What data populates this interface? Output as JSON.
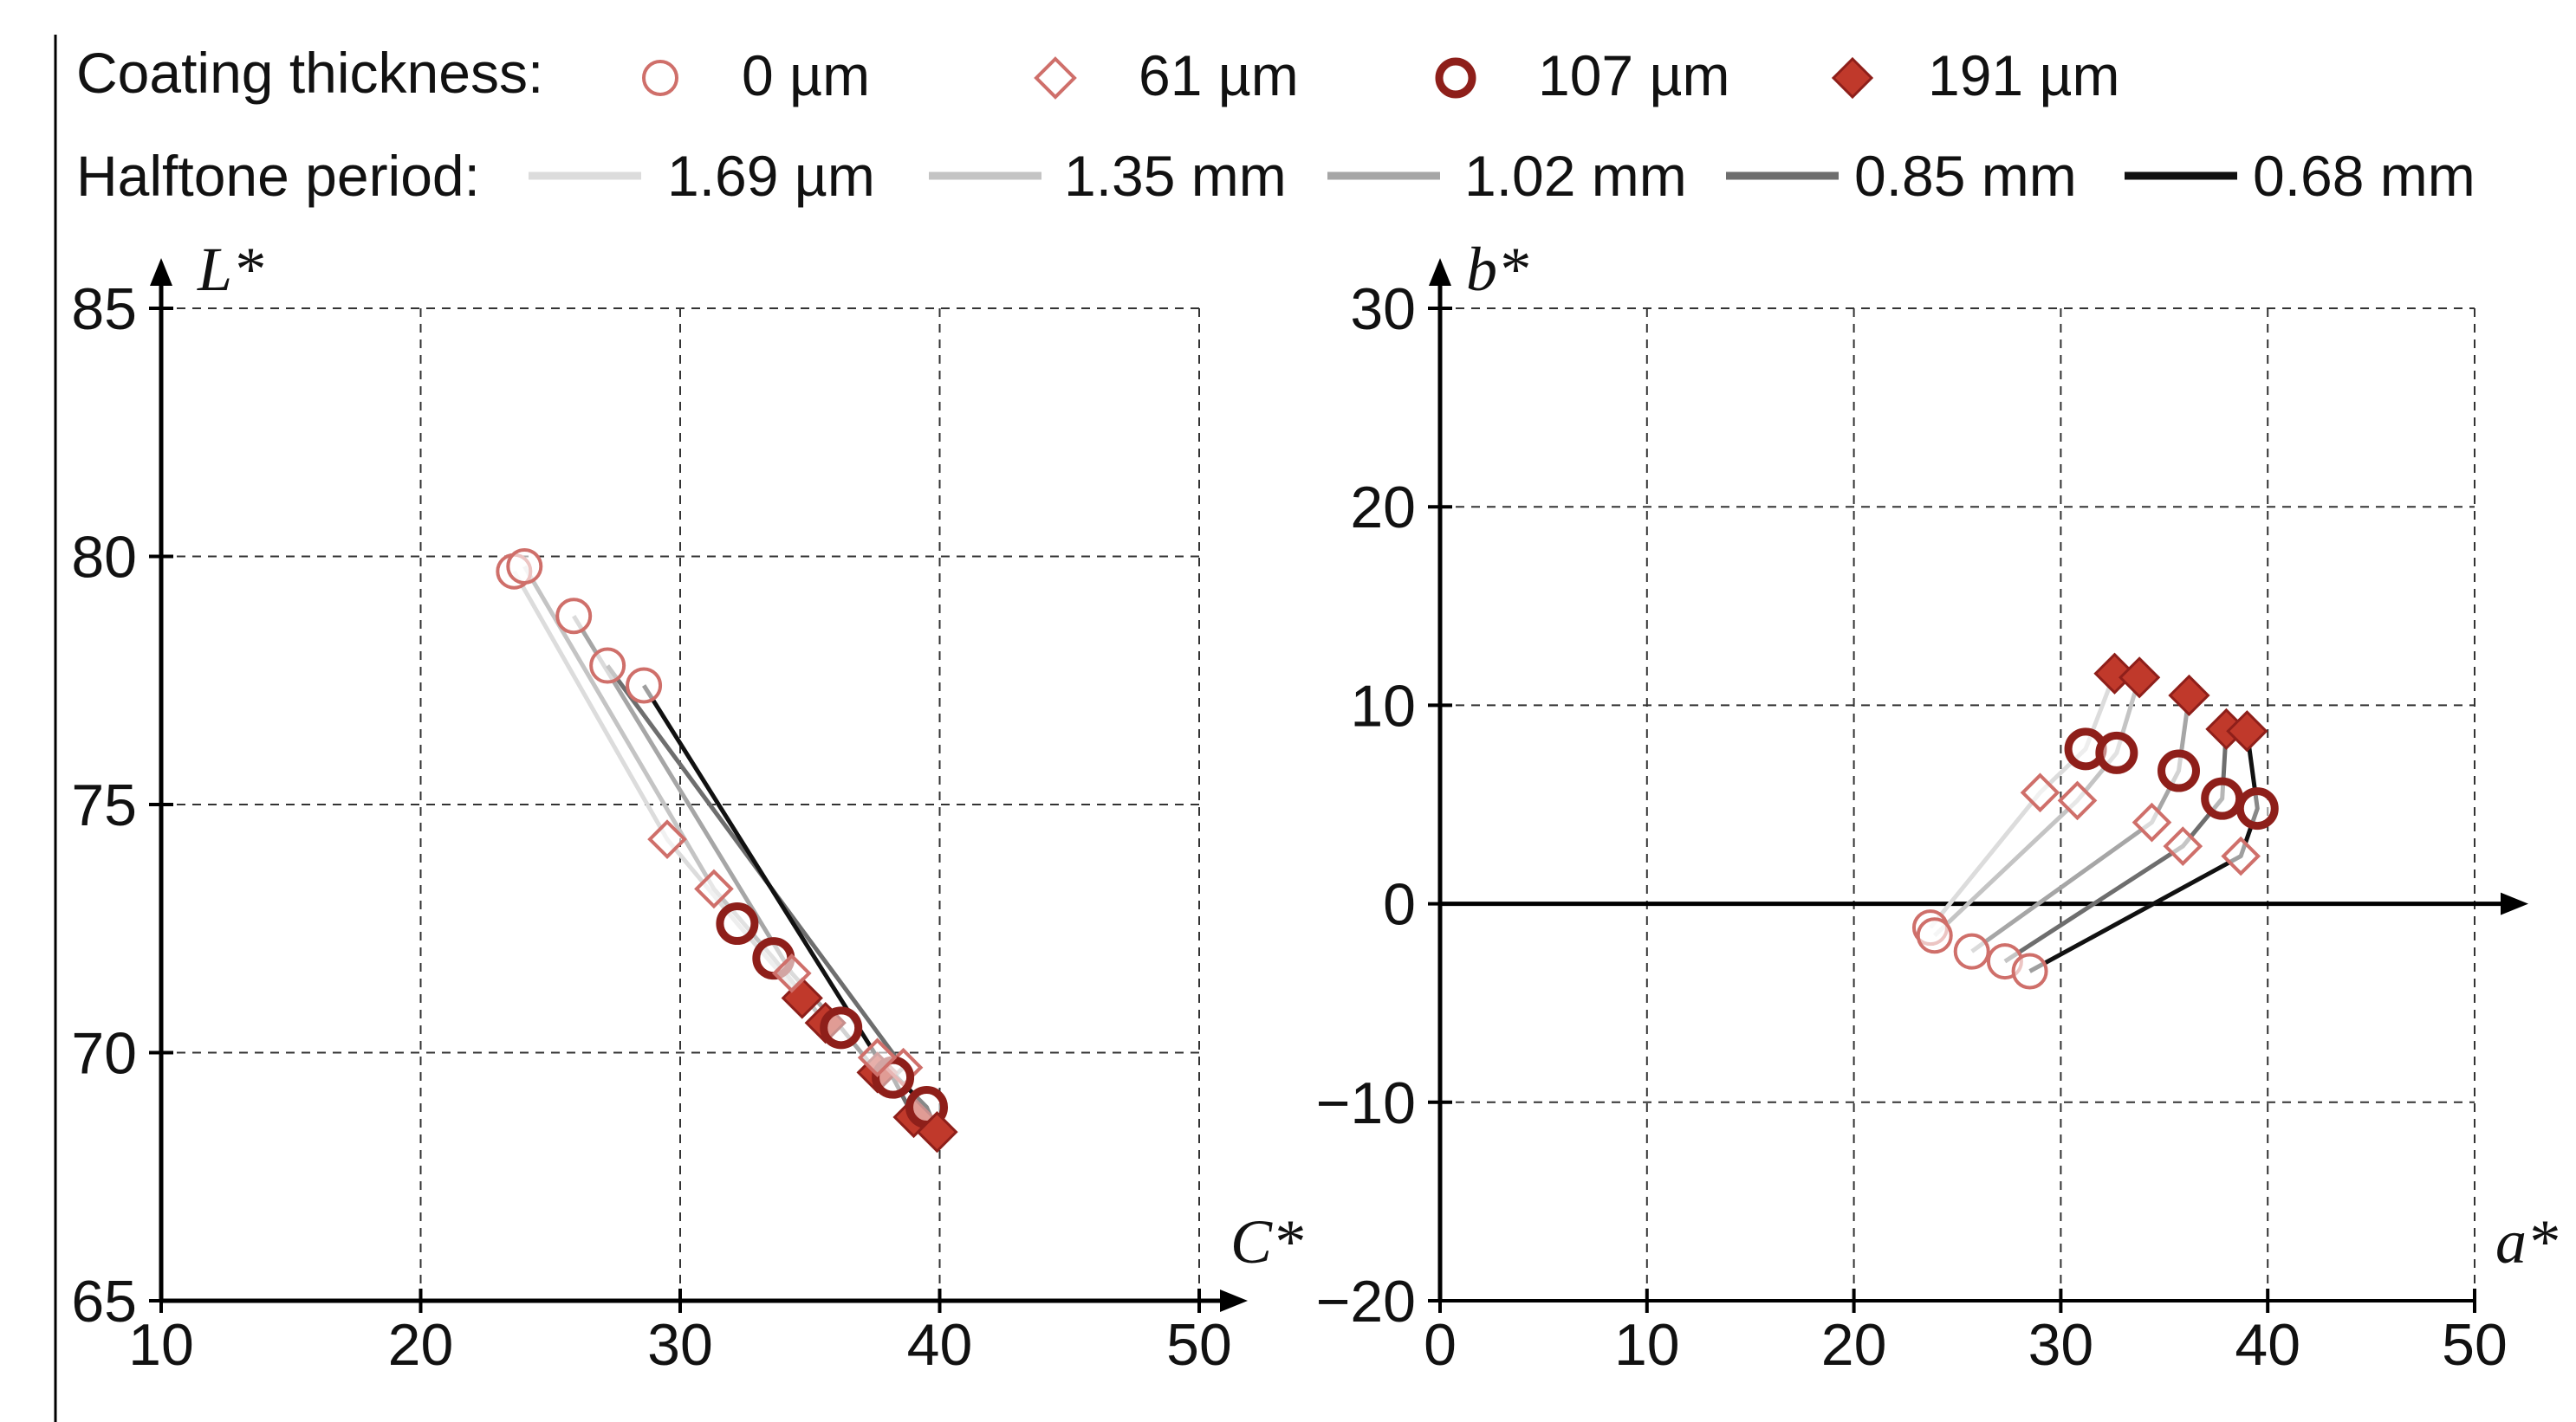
{
  "legend": {
    "thickness_title": "Coating thickness:",
    "thickness": [
      {
        "label": "0 µm",
        "marker": "circle-open"
      },
      {
        "label": "61 µm",
        "marker": "diamond-open"
      },
      {
        "label": "107 µm",
        "marker": "circle-bold"
      },
      {
        "label": "191 µm",
        "marker": "diamond-filled"
      }
    ],
    "period_title": "Halftone period:",
    "periods": [
      {
        "label": "1.69 µm",
        "color": "#dcdcdc"
      },
      {
        "label": "1.35 mm",
        "color": "#c4c4c4"
      },
      {
        "label": "1.02 mm",
        "color": "#a6a6a6"
      },
      {
        "label": "0.85 mm",
        "color": "#6e6e6e"
      },
      {
        "label": "0.68 mm",
        "color": "#111111"
      }
    ]
  },
  "colors": {
    "marker": "#c0392b",
    "marker_dark": "#8e1f1a",
    "marker_light": "#cf6f6a",
    "axis": "#000000",
    "grid": "#333333"
  },
  "chart_data": [
    {
      "type": "scatter",
      "id": "left",
      "xlabel": "C*",
      "ylabel": "L*",
      "xlim": [
        10,
        50
      ],
      "ylim": [
        65,
        85
      ],
      "xticks": [
        "10",
        "20",
        "30",
        "40",
        "50"
      ],
      "yticks": [
        "65",
        "70",
        "75",
        "80",
        "85"
      ],
      "xticks_values": [
        10,
        20,
        30,
        40,
        50
      ],
      "yticks_values": [
        65,
        70,
        75,
        80,
        85
      ],
      "series": [
        {
          "period": "1.69 µm",
          "color": "#dcdcdc",
          "points": [
            [
              23.6,
              79.7
            ],
            [
              29.5,
              74.3
            ],
            [
              32.2,
              72.6
            ],
            [
              34.7,
              71.1
            ]
          ]
        },
        {
          "period": "1.35 mm",
          "color": "#c4c4c4",
          "points": [
            [
              24.0,
              79.8
            ],
            [
              31.3,
              73.3
            ],
            [
              33.6,
              71.9
            ],
            [
              35.6,
              70.6
            ]
          ]
        },
        {
          "period": "1.02 mm",
          "color": "#a6a6a6",
          "points": [
            [
              25.9,
              78.8
            ],
            [
              34.3,
              71.6
            ],
            [
              36.2,
              70.5
            ],
            [
              37.6,
              69.6
            ]
          ]
        },
        {
          "period": "0.85 mm",
          "color": "#6e6e6e",
          "points": [
            [
              27.2,
              77.8
            ],
            [
              38.6,
              69.7
            ],
            [
              38.2,
              69.5
            ],
            [
              39.0,
              68.7
            ]
          ]
        },
        {
          "period": "0.68 mm",
          "color": "#111111",
          "points": [
            [
              28.6,
              77.4
            ],
            [
              37.6,
              69.9
            ],
            [
              39.5,
              68.9
            ],
            [
              39.9,
              68.4
            ]
          ]
        }
      ]
    },
    {
      "type": "scatter",
      "id": "right",
      "xlabel": "a*",
      "ylabel": "b*",
      "xlim": [
        0,
        50
      ],
      "ylim": [
        -20,
        30
      ],
      "xticks": [
        "0",
        "10",
        "20",
        "30",
        "40",
        "50"
      ],
      "yticks": [
        "−20",
        "−10",
        "0",
        "10",
        "20",
        "30"
      ],
      "xticks_values": [
        0,
        10,
        20,
        30,
        40,
        50
      ],
      "yticks_values": [
        -20,
        -10,
        0,
        10,
        20,
        30
      ],
      "series": [
        {
          "period": "1.69 µm",
          "color": "#dcdcdc",
          "points": [
            [
              23.7,
              -1.2
            ],
            [
              29.0,
              5.6
            ],
            [
              31.2,
              7.8
            ],
            [
              32.6,
              11.6
            ]
          ]
        },
        {
          "period": "1.35 mm",
          "color": "#c4c4c4",
          "points": [
            [
              23.9,
              -1.6
            ],
            [
              30.8,
              5.2
            ],
            [
              32.7,
              7.6
            ],
            [
              33.8,
              11.4
            ]
          ]
        },
        {
          "period": "1.02 mm",
          "color": "#a6a6a6",
          "points": [
            [
              25.7,
              -2.4
            ],
            [
              34.4,
              4.1
            ],
            [
              35.7,
              6.7
            ],
            [
              36.2,
              10.5
            ]
          ]
        },
        {
          "period": "0.85 mm",
          "color": "#6e6e6e",
          "points": [
            [
              27.3,
              -2.9
            ],
            [
              35.9,
              2.9
            ],
            [
              37.8,
              5.3
            ],
            [
              38.0,
              8.8
            ]
          ]
        },
        {
          "period": "0.68 mm",
          "color": "#111111",
          "points": [
            [
              28.5,
              -3.4
            ],
            [
              38.7,
              2.4
            ],
            [
              39.5,
              4.8
            ],
            [
              39.0,
              8.7
            ]
          ]
        }
      ]
    }
  ]
}
